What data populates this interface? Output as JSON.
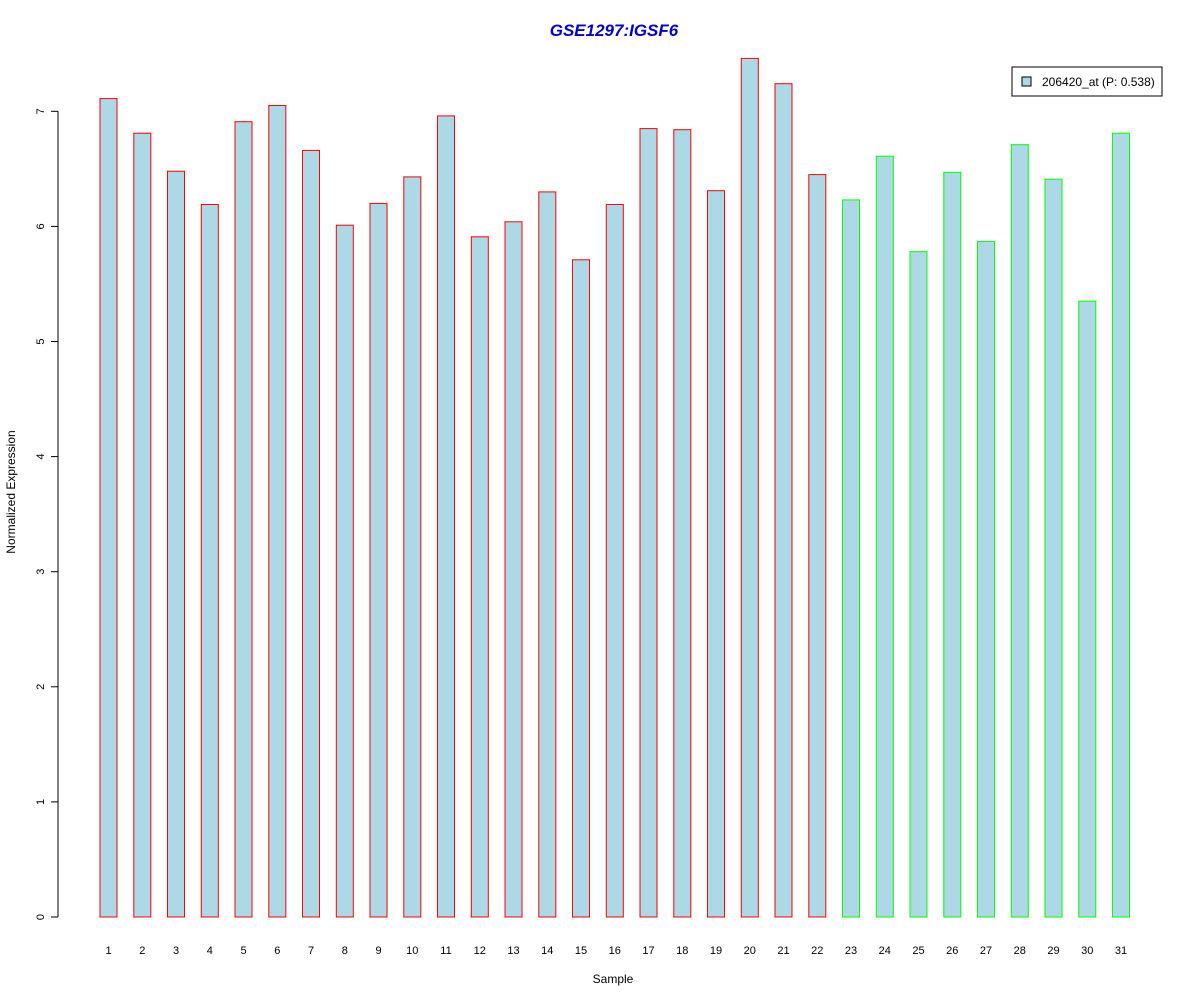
{
  "chart_data": {
    "type": "bar",
    "title": "GSE1297:IGSF6",
    "xlabel": "Sample",
    "ylabel": "Normalized Expression",
    "categories": [
      "1",
      "2",
      "3",
      "4",
      "5",
      "6",
      "7",
      "8",
      "9",
      "10",
      "11",
      "12",
      "13",
      "14",
      "15",
      "16",
      "17",
      "18",
      "19",
      "20",
      "21",
      "22",
      "23",
      "24",
      "25",
      "26",
      "27",
      "28",
      "29",
      "30",
      "31"
    ],
    "series": [
      {
        "name": "206420_at (P: 0.538)",
        "values": [
          7.11,
          6.81,
          6.48,
          6.19,
          6.91,
          7.05,
          6.66,
          6.01,
          6.2,
          6.43,
          6.96,
          5.91,
          6.04,
          6.3,
          5.71,
          6.19,
          6.85,
          6.84,
          6.31,
          7.46,
          7.24,
          6.45,
          6.23,
          6.61,
          5.78,
          6.47,
          5.87,
          6.71,
          6.41,
          5.35,
          6.81
        ]
      }
    ],
    "ylim": [
      0,
      7.46
    ],
    "yticks": [
      "0",
      "1",
      "2",
      "3",
      "4",
      "5",
      "6",
      "7"
    ],
    "grid": false,
    "legend_position": "top-right",
    "group_split_after": 22,
    "colors": {
      "title": "#0000cc",
      "bar_fill": "#add8e6",
      "group1_border": "#ff0000",
      "group2_border": "#00ff00",
      "axis": "#000000",
      "legend_border": "#000000"
    }
  }
}
